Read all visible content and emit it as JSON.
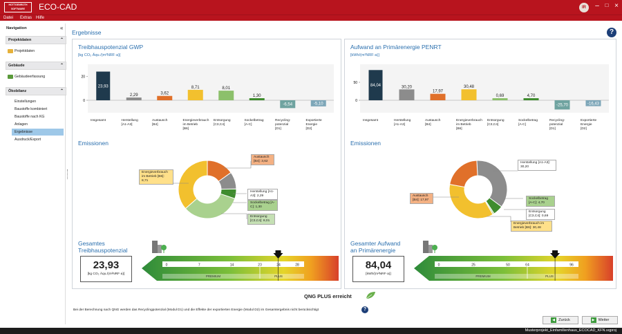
{
  "app": {
    "logo_text": [
      "HOTTGENROTH",
      "SOFTWARE"
    ],
    "title": "ECO-CAD",
    "user_initials": "IR"
  },
  "menu": [
    "Datei",
    "Extras",
    "Hilfe"
  ],
  "sidebar": {
    "header": "Navigation",
    "sections": [
      {
        "label": "Projektdaten",
        "items": [
          "Projektdaten"
        ]
      },
      {
        "label": "Gebäude",
        "items": [
          "Gebäudeerfassung"
        ]
      },
      {
        "label": "Ökobilanz",
        "items": [
          "Einstellungen",
          "Baustoffe kombiniert",
          "Baustoffe nach KG",
          "Anlagen",
          "Ergebnisse",
          "Ausdruck/Export"
        ]
      }
    ],
    "selected": "Ergebnisse"
  },
  "main": {
    "title": "Ergebnisse",
    "emissions_heading": "Emissionen",
    "qng_status": "QNG PLUS erreicht",
    "note": "Bei der Berechnung nach QNG werden das Recyclingpotenzial (Modul D1) und die Effekte der exportierten Energie (Modul D2) im Gesamtergebnis nicht berücksichtigt",
    "back_label": "Zurück",
    "next_label": "Weiter"
  },
  "gwp": {
    "title": "Treibhauspotenzial GWP",
    "unit": "[kg CO₂ Äqu./(m²NRF·a)]",
    "gauge_title_1": "Gesamtes",
    "gauge_title_2": "Treibhauspotenzial",
    "total_value": "23,93",
    "total_unit": "[kg CO₂ Äqu./(m²NRF·a)]",
    "scale_ticks": [
      "0",
      "7",
      "14",
      "20",
      "24",
      "28"
    ],
    "scale_levels": [
      "PREMIUM",
      "PLUS"
    ],
    "callouts": [
      {
        "label": "Austausch [B4]: 3,62",
        "color": "#f4b183"
      },
      {
        "label": "Energieverbrauch im Betrieb [B6]: 8,71",
        "color": "#ffe08a"
      },
      {
        "label": "Herstellung [A1-A3]: 2,29",
        "color": "#ffffff"
      },
      {
        "label": "Sockelbetrag [A-C]: 1,30",
        "color": "#a9d18e"
      },
      {
        "label": "Entsorgung [C3,C4]: 8,01",
        "color": "#c5e0b4"
      }
    ]
  },
  "penrt": {
    "title": "Aufwand an Primärenergie PENRT",
    "unit": "[kWh/(m²NRF·a)]",
    "gauge_title_1": "Gesamter Aufwand",
    "gauge_title_2": "an Primärenergie",
    "total_value": "84,04",
    "total_unit": "[kWh/(m²NRF·a)]",
    "scale_ticks": [
      "0",
      "25",
      "50",
      "64",
      "96"
    ],
    "scale_levels": [
      "PREMIUM",
      "PLUS"
    ],
    "callouts": [
      {
        "label": "Herstellung [A1-A3]: 30,20",
        "color": "#ffffff"
      },
      {
        "label": "Austausch [B4]: 17,97",
        "color": "#f4b183"
      },
      {
        "label": "Sockelbetrag [A-C]: 4,70",
        "color": "#a9d18e"
      },
      {
        "label": "Entsorgung [C3,C4]: 0,69",
        "color": "#ffffff"
      },
      {
        "label": "Energieverbrauch im Betrieb [B6]: 30,48",
        "color": "#ffe08a"
      }
    ]
  },
  "chart_data": [
    {
      "type": "bar",
      "title": "Treibhauspotenzial GWP",
      "ylabel": "[kg CO₂ Äqu./(m²NRF·a)]",
      "ylim": [
        -10,
        30
      ],
      "yticks": [
        0,
        20
      ],
      "categories": [
        "Insgesamt",
        "Herstellung [A1-A3]",
        "Austausch [B4]",
        "Energieverbrauch im Betrieb [B6]",
        "Entsorgung [C3,C4]",
        "Sockelbetrag [A-C]",
        "Recycling-potenzial [D1]",
        "Exportierte Energie [D2]"
      ],
      "values": [
        23.93,
        2.29,
        3.62,
        8.71,
        8.01,
        1.3,
        -6.54,
        -5.1
      ],
      "labels": [
        "23,93",
        "2,29",
        "3,62",
        "8,71",
        "8,01",
        "1,30",
        "-6,54",
        "-5,10"
      ],
      "colors": [
        "#1f3a4d",
        "#8c8c8c",
        "#e0702a",
        "#f2c02e",
        "#8cc06b",
        "#3f8c2e",
        "#6fa3a0",
        "#7da6b8"
      ]
    },
    {
      "type": "bar",
      "title": "Aufwand an Primärenergie PENRT",
      "ylabel": "[kWh/(m²NRF·a)]",
      "ylim": [
        -30,
        100
      ],
      "yticks": [
        0,
        50
      ],
      "categories": [
        "Insgesamt",
        "Herstellung [A1-A3]",
        "Austausch [B4]",
        "Energieverbrauch im Betrieb [B6]",
        "Entsorgung [C3,C4]",
        "Sockelbetrag [A-C]",
        "Recycling-potenzial [D1]",
        "Exportierte Energie [D2]"
      ],
      "values": [
        84.04,
        30.2,
        17.97,
        30.48,
        0.69,
        4.7,
        -25.7,
        -16.43
      ],
      "labels": [
        "84,04",
        "30,20",
        "17,97",
        "30,48",
        "0,69",
        "4,70",
        "-25,70",
        "-16,43"
      ],
      "colors": [
        "#1f3a4d",
        "#8c8c8c",
        "#e0702a",
        "#f2c02e",
        "#8cc06b",
        "#3f8c2e",
        "#6fa3a0",
        "#7da6b8"
      ]
    },
    {
      "type": "pie",
      "title": "Emissionen",
      "categories": [
        "Austausch [B4]",
        "Herstellung [A1-A3]",
        "Sockelbetrag [A-C]",
        "Entsorgung [C3,C4]",
        "Energieverbrauch im Betrieb [B6]"
      ],
      "values": [
        3.62,
        2.29,
        1.3,
        8.01,
        8.71
      ],
      "colors": [
        "#e0702a",
        "#8c8c8c",
        "#3f8c2e",
        "#a9d18e",
        "#f2c02e"
      ]
    },
    {
      "type": "pie",
      "title": "Emissionen",
      "categories": [
        "Herstellung [A1-A3]",
        "Sockelbetrag [A-C]",
        "Entsorgung [C3,C4]",
        "Energieverbrauch im Betrieb [B6]",
        "Austausch [B4]"
      ],
      "values": [
        30.2,
        4.7,
        0.69,
        30.48,
        17.97
      ],
      "colors": [
        "#8c8c8c",
        "#3f8c2e",
        "#a9d18e",
        "#f2c02e",
        "#e0702a"
      ]
    }
  ],
  "status": {
    "project": "Musterprojekt_Einfamilienhaus_ECOCAD_KFN.sqproj"
  }
}
